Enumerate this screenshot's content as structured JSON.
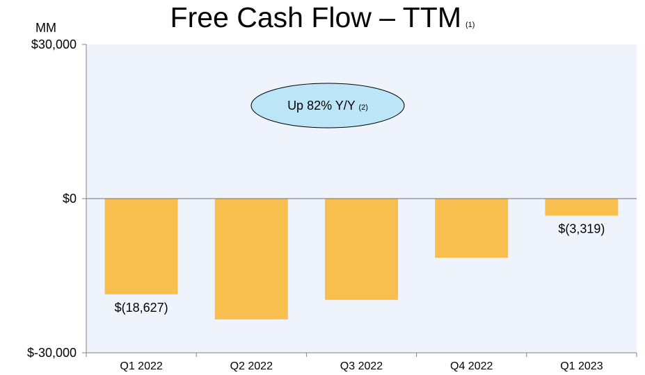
{
  "title": "Free Cash Flow – TTM",
  "title_note": "(1)",
  "unit_label": "MM",
  "callout": {
    "text": "Up 82% Y/Y",
    "note": "(2)"
  },
  "colors": {
    "bar": "#F9BF4E",
    "plot_bg": "#EEF3FC",
    "axis": "#808080",
    "callout_fill": "#BDE5F8"
  },
  "chart_data": {
    "type": "bar",
    "title": "Free Cash Flow – TTM",
    "ylabel": "MM",
    "ylim": [
      -30000,
      30000
    ],
    "y_ticks": [
      30000,
      0,
      -30000
    ],
    "y_tick_labels": [
      "$30,000",
      "$0",
      "$-30,000"
    ],
    "categories": [
      "Q1 2022",
      "Q2 2022",
      "Q3 2022",
      "Q4 2022",
      "Q1 2023"
    ],
    "values": [
      -18627,
      -23500,
      -19700,
      -11500,
      -3319
    ],
    "data_labels": [
      "$(18,627)",
      "",
      "",
      "",
      "$(3,319)"
    ],
    "grid": false,
    "legend": "none"
  }
}
